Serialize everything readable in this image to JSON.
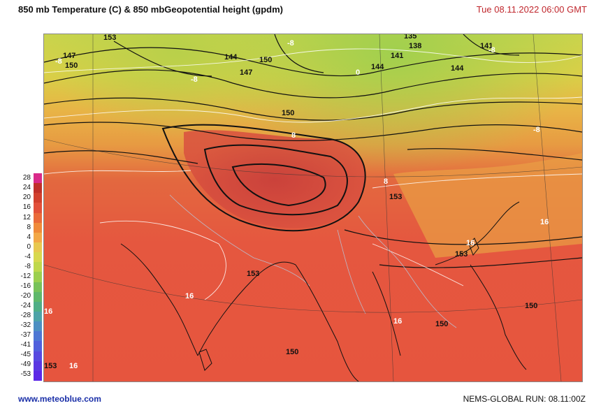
{
  "header": {
    "title": "850 mb Temperature (C)  & 850 mbGeopotential height (gpdm)",
    "datetime": "Tue 08.11.2022  06:00 GMT"
  },
  "footer": {
    "website": "www.meteoblue.com",
    "model_run": "NEMS-GLOBAL  RUN: 08.11:00Z"
  },
  "color_scale": {
    "labels": [
      "28",
      "24",
      "20",
      "16",
      "12",
      "8",
      "4",
      "0",
      "-4",
      "-8",
      "-12",
      "-16",
      "-20",
      "-24",
      "-28",
      "-32",
      "-37",
      "-41",
      "-45",
      "-49",
      "-53"
    ],
    "colors": [
      "#d92a8a",
      "#c0302a",
      "#d2402e",
      "#e2503a",
      "#ea6a3a",
      "#f08a3a",
      "#f3a847",
      "#e8c850",
      "#d8d84e",
      "#bfd84c",
      "#9ccf4e",
      "#78c259",
      "#5fb86a",
      "#4fae86",
      "#4da3a7",
      "#4c8fc2",
      "#4d77d4",
      "#5060dc",
      "#5749e0",
      "#5a37e2",
      "#5c28e6"
    ]
  },
  "map": {
    "height_labels_black": [
      "153",
      "147",
      "150",
      "144",
      "150",
      "135",
      "138",
      "141",
      "141",
      "144",
      "144",
      "147",
      "150",
      "153",
      "153",
      "153",
      "150",
      "150",
      "150",
      "153"
    ],
    "temp_labels_white": [
      "-8",
      "-8",
      "-8",
      "0",
      "-8",
      "-8",
      "8",
      "8",
      "16",
      "16",
      "16",
      "16",
      "16",
      "16"
    ]
  }
}
